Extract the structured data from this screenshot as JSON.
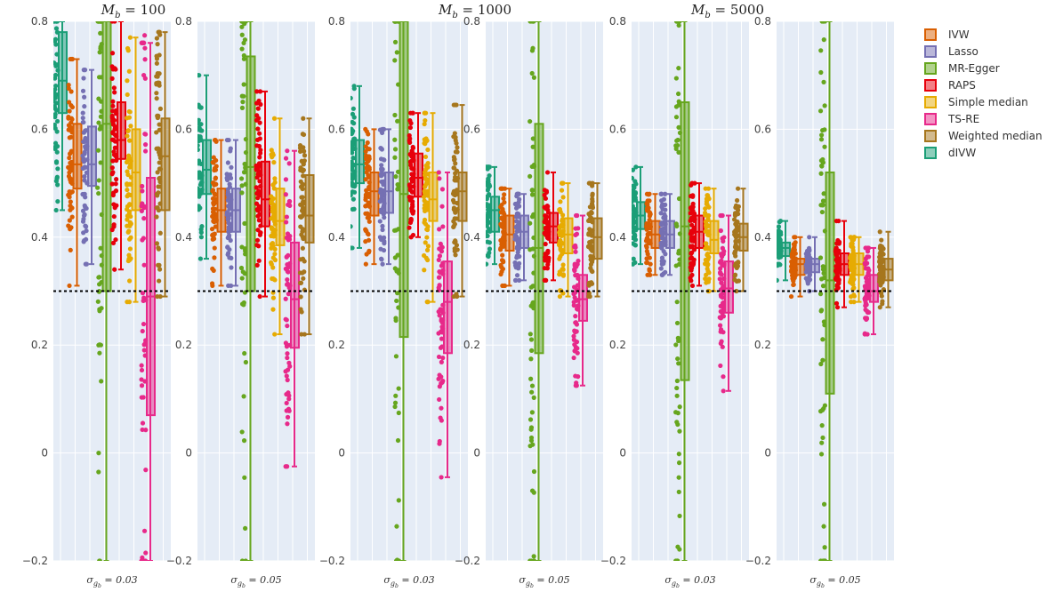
{
  "chart_data": {
    "type": "box",
    "y_range": [
      -0.2,
      0.8
    ],
    "y_ticks": [
      -0.2,
      0,
      0.2,
      0.4,
      0.6,
      0.8
    ],
    "y_tick_labels": [
      "−0.2",
      "0",
      "0.2",
      "0.4",
      "0.6",
      "0.8"
    ],
    "reference_line": 0.3,
    "grid": true,
    "legend_position": "top-right",
    "groups": [
      {
        "title_base": "M",
        "title_sub": "b",
        "title_rest": " = 100"
      },
      {
        "title_base": "M",
        "title_sub": "b",
        "title_rest": " = 1000"
      },
      {
        "title_base": "M",
        "title_sub": "b",
        "title_rest": " = 5000"
      }
    ],
    "panel_label": {
      "base": "σ",
      "sub": "g",
      "subsub": "b",
      "rest": " = "
    },
    "panels": [
      {
        "sigma": "0.03",
        "boxes": [
          {
            "name": "dIVW",
            "q1": 0.63,
            "median": 0.69,
            "q3": 0.78,
            "lo": 0.45,
            "hi": 0.8
          },
          {
            "name": "IVW",
            "q1": 0.49,
            "median": 0.535,
            "q3": 0.61,
            "lo": 0.31,
            "hi": 0.73
          },
          {
            "name": "Lasso",
            "q1": 0.495,
            "median": 0.535,
            "q3": 0.605,
            "lo": 0.35,
            "hi": 0.71
          },
          {
            "name": "MR-Egger",
            "q1": 0.3,
            "median": 0.61,
            "q3": 0.8,
            "lo": -0.2,
            "hi": 0.8
          },
          {
            "name": "RAPS",
            "q1": 0.545,
            "median": 0.58,
            "q3": 0.65,
            "lo": 0.34,
            "hi": 0.8
          },
          {
            "name": "Simple median",
            "q1": 0.45,
            "median": 0.52,
            "q3": 0.6,
            "lo": 0.28,
            "hi": 0.77
          },
          {
            "name": "TS-RE",
            "q1": 0.07,
            "median": 0.29,
            "q3": 0.51,
            "lo": -0.2,
            "hi": 0.76
          },
          {
            "name": "Weighted median",
            "q1": 0.45,
            "median": 0.55,
            "q3": 0.62,
            "lo": 0.29,
            "hi": 0.78
          }
        ]
      },
      {
        "sigma": "0.05",
        "boxes": [
          {
            "name": "dIVW",
            "q1": 0.48,
            "median": 0.525,
            "q3": 0.58,
            "lo": 0.36,
            "hi": 0.7
          },
          {
            "name": "IVW",
            "q1": 0.41,
            "median": 0.45,
            "q3": 0.49,
            "lo": 0.31,
            "hi": 0.58
          },
          {
            "name": "Lasso",
            "q1": 0.41,
            "median": 0.45,
            "q3": 0.49,
            "lo": 0.31,
            "hi": 0.58
          },
          {
            "name": "MR-Egger",
            "q1": 0.3,
            "median": 0.53,
            "q3": 0.735,
            "lo": -0.2,
            "hi": 0.8
          },
          {
            "name": "RAPS",
            "q1": 0.42,
            "median": 0.47,
            "q3": 0.54,
            "lo": 0.29,
            "hi": 0.67
          },
          {
            "name": "Simple median",
            "q1": 0.385,
            "median": 0.43,
            "q3": 0.49,
            "lo": 0.22,
            "hi": 0.62
          },
          {
            "name": "TS-RE",
            "q1": 0.195,
            "median": 0.285,
            "q3": 0.39,
            "lo": -0.025,
            "hi": 0.56
          },
          {
            "name": "Weighted median",
            "q1": 0.39,
            "median": 0.44,
            "q3": 0.515,
            "lo": 0.22,
            "hi": 0.62
          }
        ]
      },
      {
        "sigma": "0.03",
        "boxes": [
          {
            "name": "dIVW",
            "q1": 0.5,
            "median": 0.535,
            "q3": 0.58,
            "lo": 0.38,
            "hi": 0.68
          },
          {
            "name": "IVW",
            "q1": 0.44,
            "median": 0.485,
            "q3": 0.52,
            "lo": 0.35,
            "hi": 0.6
          },
          {
            "name": "Lasso",
            "q1": 0.445,
            "median": 0.485,
            "q3": 0.52,
            "lo": 0.35,
            "hi": 0.6
          },
          {
            "name": "MR-Egger",
            "q1": 0.215,
            "median": 0.48,
            "q3": 0.8,
            "lo": -0.2,
            "hi": 0.8
          },
          {
            "name": "RAPS",
            "q1": 0.475,
            "median": 0.51,
            "q3": 0.555,
            "lo": 0.4,
            "hi": 0.63
          },
          {
            "name": "Simple median",
            "q1": 0.43,
            "median": 0.47,
            "q3": 0.52,
            "lo": 0.28,
            "hi": 0.63
          },
          {
            "name": "TS-RE",
            "q1": 0.185,
            "median": 0.28,
            "q3": 0.355,
            "lo": -0.045,
            "hi": 0.52
          },
          {
            "name": "Weighted median",
            "q1": 0.43,
            "median": 0.485,
            "q3": 0.52,
            "lo": 0.29,
            "hi": 0.645
          }
        ]
      },
      {
        "sigma": "0.05",
        "boxes": [
          {
            "name": "dIVW",
            "q1": 0.41,
            "median": 0.45,
            "q3": 0.475,
            "lo": 0.35,
            "hi": 0.53
          },
          {
            "name": "IVW",
            "q1": 0.375,
            "median": 0.405,
            "q3": 0.44,
            "lo": 0.31,
            "hi": 0.49
          },
          {
            "name": "Lasso",
            "q1": 0.38,
            "median": 0.41,
            "q3": 0.44,
            "lo": 0.32,
            "hi": 0.48
          },
          {
            "name": "MR-Egger",
            "q1": 0.185,
            "median": 0.38,
            "q3": 0.61,
            "lo": -0.2,
            "hi": 0.8
          },
          {
            "name": "RAPS",
            "q1": 0.39,
            "median": 0.42,
            "q3": 0.445,
            "lo": 0.32,
            "hi": 0.52
          },
          {
            "name": "Simple median",
            "q1": 0.37,
            "median": 0.405,
            "q3": 0.435,
            "lo": 0.29,
            "hi": 0.5
          },
          {
            "name": "TS-RE",
            "q1": 0.245,
            "median": 0.285,
            "q3": 0.33,
            "lo": 0.125,
            "hi": 0.44
          },
          {
            "name": "Weighted median",
            "q1": 0.36,
            "median": 0.4,
            "q3": 0.435,
            "lo": 0.29,
            "hi": 0.5
          }
        ]
      },
      {
        "sigma": "0.03",
        "boxes": [
          {
            "name": "dIVW",
            "q1": 0.415,
            "median": 0.44,
            "q3": 0.465,
            "lo": 0.35,
            "hi": 0.53
          },
          {
            "name": "IVW",
            "q1": 0.38,
            "median": 0.405,
            "q3": 0.43,
            "lo": 0.33,
            "hi": 0.48
          },
          {
            "name": "Lasso",
            "q1": 0.38,
            "median": 0.405,
            "q3": 0.43,
            "lo": 0.33,
            "hi": 0.48
          },
          {
            "name": "MR-Egger",
            "q1": 0.135,
            "median": 0.42,
            "q3": 0.65,
            "lo": -0.2,
            "hi": 0.8
          },
          {
            "name": "RAPS",
            "q1": 0.38,
            "median": 0.41,
            "q3": 0.44,
            "lo": 0.31,
            "hi": 0.5
          },
          {
            "name": "Simple median",
            "q1": 0.37,
            "median": 0.395,
            "q3": 0.43,
            "lo": 0.3,
            "hi": 0.49
          },
          {
            "name": "TS-RE",
            "q1": 0.26,
            "median": 0.305,
            "q3": 0.355,
            "lo": 0.115,
            "hi": 0.44
          },
          {
            "name": "Weighted median",
            "q1": 0.375,
            "median": 0.4,
            "q3": 0.425,
            "lo": 0.3,
            "hi": 0.49
          }
        ]
      },
      {
        "sigma": "0.05",
        "boxes": [
          {
            "name": "dIVW",
            "q1": 0.365,
            "median": 0.38,
            "q3": 0.39,
            "lo": 0.32,
            "hi": 0.43
          },
          {
            "name": "IVW",
            "q1": 0.33,
            "median": 0.35,
            "q3": 0.36,
            "lo": 0.29,
            "hi": 0.4
          },
          {
            "name": "Lasso",
            "q1": 0.335,
            "median": 0.35,
            "q3": 0.36,
            "lo": 0.3,
            "hi": 0.4
          },
          {
            "name": "MR-Egger",
            "q1": 0.11,
            "median": 0.32,
            "q3": 0.52,
            "lo": -0.2,
            "hi": 0.8
          },
          {
            "name": "RAPS",
            "q1": 0.33,
            "median": 0.35,
            "q3": 0.37,
            "lo": 0.27,
            "hi": 0.43
          },
          {
            "name": "Simple median",
            "q1": 0.33,
            "median": 0.35,
            "q3": 0.37,
            "lo": 0.28,
            "hi": 0.4
          },
          {
            "name": "TS-RE",
            "q1": 0.28,
            "median": 0.3,
            "q3": 0.33,
            "lo": 0.22,
            "hi": 0.38
          },
          {
            "name": "Weighted median",
            "q1": 0.32,
            "median": 0.34,
            "q3": 0.36,
            "lo": 0.27,
            "hi": 0.41
          }
        ]
      }
    ],
    "series": [
      {
        "name": "IVW",
        "color": "#D95F02"
      },
      {
        "name": "Lasso",
        "color": "#7570B3"
      },
      {
        "name": "MR-Egger",
        "color": "#66A61E"
      },
      {
        "name": "RAPS",
        "color": "#E7000B"
      },
      {
        "name": "Simple median",
        "color": "#E6AB02"
      },
      {
        "name": "TS-RE",
        "color": "#E7298A"
      },
      {
        "name": "Weighted median",
        "color": "#A6761D"
      },
      {
        "name": "dIVW",
        "color": "#1B9E77"
      }
    ]
  }
}
